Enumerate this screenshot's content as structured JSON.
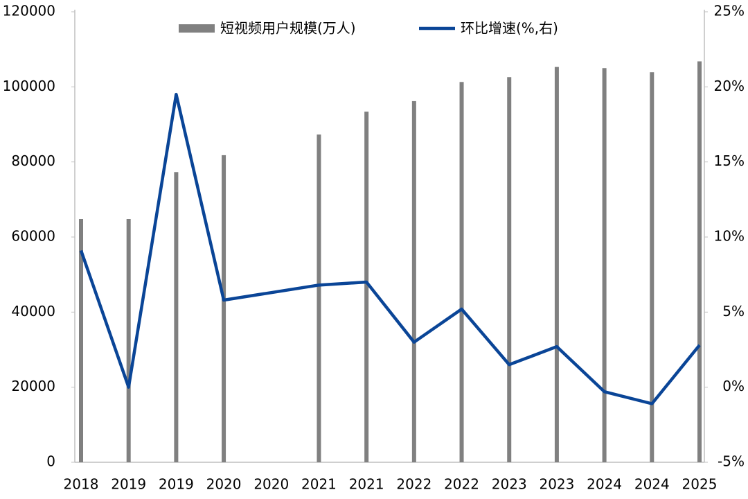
{
  "chart_data": {
    "type": "bar_line",
    "categories": [
      "2018",
      "2019",
      "2019",
      "2020",
      "2020",
      "2021",
      "2021",
      "2022",
      "2022",
      "2023",
      "2023",
      "2024",
      "2024",
      "2025"
    ],
    "series": [
      {
        "name": "短视频用户规模(万人)",
        "type": "bar",
        "color": "#808080",
        "values": [
          64800,
          64800,
          77300,
          81800,
          null,
          87300,
          93400,
          96200,
          101300,
          102600,
          105300,
          105000,
          103900,
          106800
        ]
      },
      {
        "name": "环比增速(%,右)",
        "type": "line",
        "axis": "y2",
        "color": "#0a4597",
        "values": [
          9.1,
          0,
          19.5,
          5.8,
          6.3,
          6.8,
          7.0,
          3.0,
          5.2,
          1.5,
          2.7,
          -0.3,
          -1.1,
          2.8
        ]
      }
    ],
    "ylim": [
      0,
      120000
    ],
    "yticks": [
      0,
      20000,
      40000,
      60000,
      80000,
      100000,
      120000
    ],
    "y2lim": [
      -5,
      25
    ],
    "y2ticks": [
      {
        "value": -5,
        "label": "-5%"
      },
      {
        "value": 0,
        "label": "0%"
      },
      {
        "value": 5,
        "label": "5%"
      },
      {
        "value": 10,
        "label": "10%"
      },
      {
        "value": 15,
        "label": "15%"
      },
      {
        "value": 20,
        "label": "20%"
      },
      {
        "value": 25,
        "label": "25%"
      }
    ],
    "grid": false,
    "legend": "top"
  }
}
